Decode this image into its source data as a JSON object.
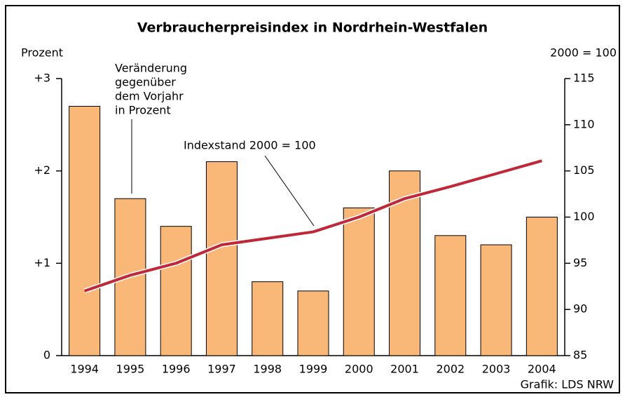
{
  "chart_data": {
    "type": "bar-line",
    "title": "Verbraucherpreisindex in Nordrhein-Westfalen",
    "y_label": "Prozent",
    "y2_label": "2000 = 100",
    "bar_annotation": [
      "Veränderung",
      "gegenüber",
      "dem Vorjahr",
      "in Prozent"
    ],
    "line_annotation": "Indexstand 2000 = 100",
    "source": "Grafik: LDS NRW",
    "categories": [
      "1994",
      "1995",
      "1996",
      "1997",
      "1998",
      "1999",
      "2000",
      "2001",
      "2002",
      "2003",
      "2004"
    ],
    "series": [
      {
        "type": "bar",
        "color": "#f9b878",
        "values": [
          2.7,
          1.7,
          1.4,
          2.1,
          0.8,
          0.7,
          1.6,
          2.0,
          1.3,
          1.2,
          1.5
        ]
      },
      {
        "type": "line",
        "axis": "y2",
        "color": "#c0283a",
        "values": [
          92.0,
          93.7,
          95.0,
          97.0,
          97.7,
          98.4,
          100.0,
          102.0,
          103.3,
          104.7,
          106.1
        ]
      }
    ],
    "ylim": [
      0,
      3
    ],
    "yticks": [
      {
        "value": 0,
        "label": "0"
      },
      {
        "value": 1,
        "label": "+1"
      },
      {
        "value": 2,
        "label": "+2"
      },
      {
        "value": 3,
        "label": "+3"
      }
    ],
    "y2lim": [
      85,
      115
    ],
    "y2ticks": [
      85,
      90,
      95,
      100,
      105,
      110,
      115
    ]
  }
}
